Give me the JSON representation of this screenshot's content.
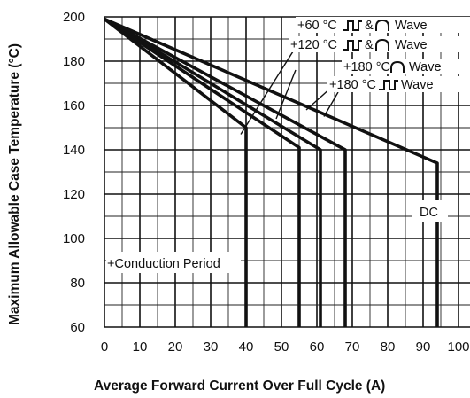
{
  "chart_data": {
    "type": "line",
    "xlabel": "Average Forward Current Over Full Cycle (A)",
    "ylabel": "Maximum Allowable Case Temperature (°C)",
    "xlim": [
      0,
      100
    ],
    "ylim": [
      60,
      200
    ],
    "xticks": [
      "0",
      "10",
      "20",
      "30",
      "40",
      "50",
      "60",
      "70",
      "80",
      "90",
      "100"
    ],
    "yticks": [
      "60",
      "80",
      "100",
      "120",
      "140",
      "160",
      "180",
      "200"
    ],
    "grid": true,
    "series": [
      {
        "name": "+60 °C ⎍ & ⋂ Wave",
        "x": [
          0,
          40,
          40
        ],
        "y": [
          199,
          150,
          60
        ]
      },
      {
        "name": "+120 °C ⎍ & ⋂ Wave",
        "x": [
          0,
          55,
          55
        ],
        "y": [
          199,
          141,
          60
        ]
      },
      {
        "name": "+180 °C ⋂ Wave",
        "x": [
          0,
          61,
          61
        ],
        "y": [
          199,
          140,
          60
        ]
      },
      {
        "name": "+180 °C ⎍ Wave",
        "x": [
          0,
          68,
          68
        ],
        "y": [
          199,
          140,
          60
        ]
      },
      {
        "name": "DC",
        "x": [
          0,
          94,
          94
        ],
        "y": [
          199,
          134,
          60
        ]
      }
    ],
    "annotations": {
      "dc": "DC",
      "conduction": "+Conduction Period",
      "sixty": "+60 °C",
      "one_twenty": "+120 °C",
      "one_eighty_a": "+180 °C",
      "one_eighty_b": "+180 °C",
      "amp": "&",
      "wave": "Wave"
    }
  }
}
